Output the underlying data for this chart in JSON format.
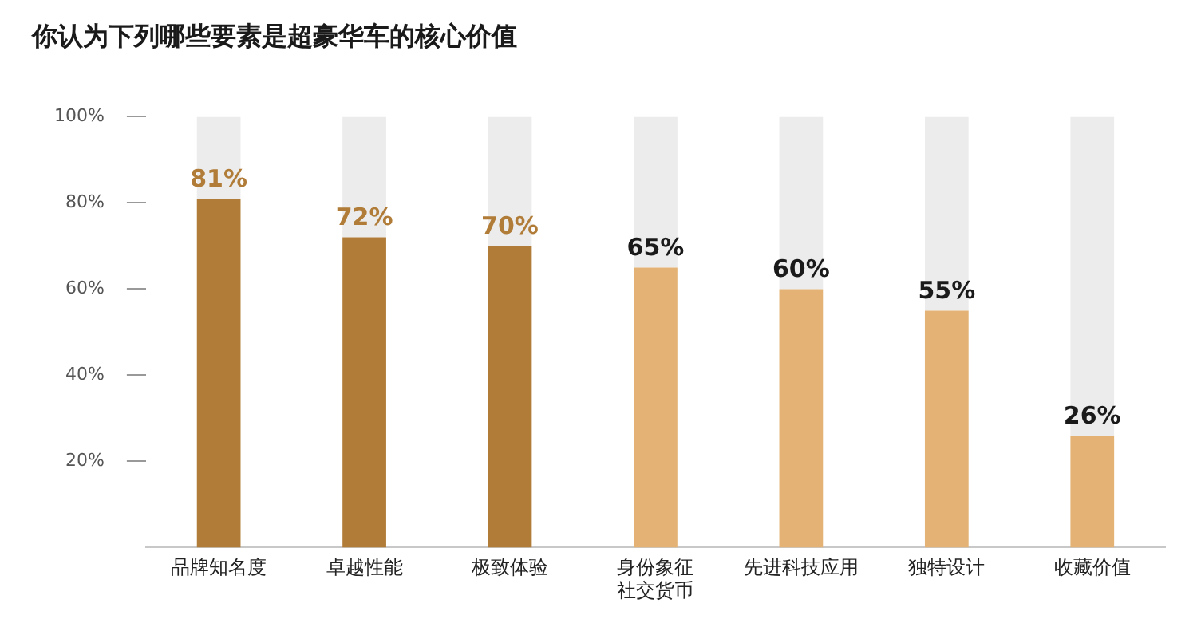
{
  "chart_data": {
    "type": "bar",
    "title": "你认为下列哪些要素是超豪华车的核心价值",
    "categories": [
      "品牌知名度",
      "卓越性能",
      "极致体验",
      "身份象征社交货币",
      "先进科技应用",
      "独特设计",
      "收藏价值"
    ],
    "stacked": true,
    "series": [
      {
        "colors": [
          "#b07c37",
          "#b07c37",
          "#b07c37",
          "#e3b274",
          "#e3b274",
          "#e3b274",
          "#e3b274"
        ],
        "values": [
          81,
          72,
          70,
          65,
          60,
          55,
          26
        ],
        "value_labels": [
          "81%",
          "72%",
          "70%",
          "65%",
          "60%",
          "55%",
          "26%"
        ]
      },
      {
        "color": "#ececec",
        "values": [
          19,
          28,
          30,
          35,
          40,
          45,
          74
        ]
      }
    ],
    "ylim": [
      0,
      100
    ],
    "yticks": [
      {
        "value": 20,
        "label": "20%"
      },
      {
        "value": 40,
        "label": "40%"
      },
      {
        "value": 60,
        "label": "60%"
      },
      {
        "value": 80,
        "label": "80%"
      },
      {
        "value": 100,
        "label": "100%"
      }
    ],
    "grid": false,
    "legend": false
  }
}
